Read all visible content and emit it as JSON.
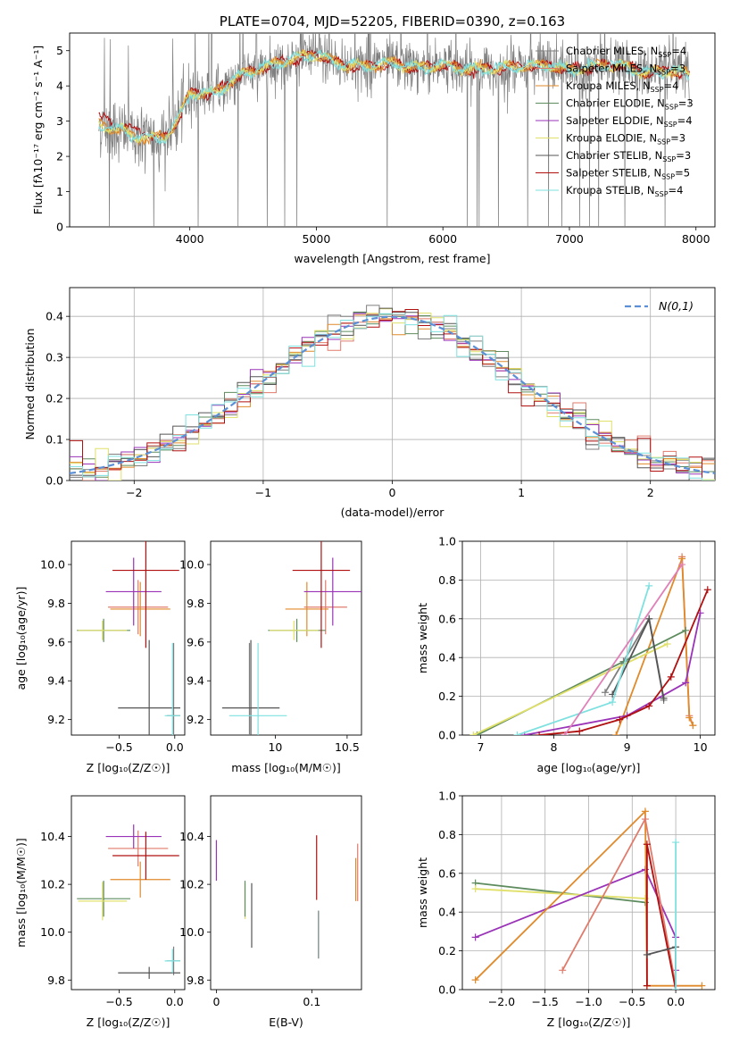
{
  "colors": {
    "chabrier_miles": "#7f7f7f",
    "salpeter_miles": "#e07b6b",
    "kroupa_miles": "#e08a2b",
    "chabrier_elodie": "#5e8c5e",
    "salpeter_elodie": "#9a33b8",
    "kroupa_elodie": "#e0e06b",
    "chabrier_stelib": "#555555",
    "salpeter_stelib": "#b01010",
    "kroupa_stelib": "#7fe0e0",
    "gaussian": "#5b8fd6",
    "grid": "#b0b0b0"
  },
  "chart_data": [
    {
      "id": "spectrum",
      "type": "line",
      "title": "PLATE=0704, MJD=52205, FIBERID=0390, z=0.163",
      "xlabel": "wavelength [Angstrom, rest frame]",
      "ylabel": "Flux [fλ10⁻¹⁷ erg cm⁻² s⁻¹ A⁻¹]",
      "xlim": [
        3050,
        8150
      ],
      "ylim": [
        0,
        5.5
      ],
      "xticks": [
        4000,
        5000,
        6000,
        7000,
        8000
      ],
      "yticks": [
        0,
        1,
        2,
        3,
        4,
        5
      ],
      "grid": false,
      "legend_position": "right",
      "series": [
        {
          "name": "Chabrier MILES, N",
          "sub": "SSP",
          "suffix": "=4"
        },
        {
          "name": "Salpeter MILES, N",
          "sub": "SSP",
          "suffix": "=3"
        },
        {
          "name": "Kroupa MILES, N",
          "sub": "SSP",
          "suffix": "=4"
        },
        {
          "name": "Chabrier ELODIE, N",
          "sub": "SSP",
          "suffix": "=3"
        },
        {
          "name": "Salpeter ELODIE, N",
          "sub": "SSP",
          "suffix": "=4"
        },
        {
          "name": "Kroupa ELODIE, N",
          "sub": "SSP",
          "suffix": "=3"
        },
        {
          "name": "Chabrier STELIB, N",
          "sub": "SSP",
          "suffix": "=3"
        },
        {
          "name": "Salpeter STELIB, N",
          "sub": "SSP",
          "suffix": "=5"
        },
        {
          "name": "Kroupa STELIB, N",
          "sub": "SSP",
          "suffix": "=4"
        }
      ],
      "model_continuum": {
        "x": [
          3280,
          3400,
          3550,
          3700,
          3800,
          3900,
          4000,
          4200,
          4400,
          4600,
          4800,
          5000,
          5200,
          5400,
          5600,
          5800,
          6000,
          6200,
          6400,
          6600,
          6800,
          7000,
          7200,
          7400,
          7600,
          7800,
          7950
        ],
        "y": [
          2.9,
          2.8,
          2.6,
          2.5,
          2.55,
          3.0,
          3.8,
          3.8,
          4.3,
          4.55,
          4.75,
          4.9,
          4.6,
          4.55,
          4.65,
          4.5,
          4.6,
          4.45,
          4.5,
          4.55,
          4.6,
          4.45,
          4.55,
          4.6,
          4.35,
          4.45,
          4.3
        ]
      },
      "data_x_range": [
        3280,
        7950
      ]
    },
    {
      "id": "residuals",
      "type": "histogram",
      "xlabel": "(data-model)/error",
      "ylabel": "Normed distribution",
      "xlim": [
        -2.5,
        2.5
      ],
      "ylim": [
        0,
        0.47
      ],
      "xticks": [
        -2,
        -1,
        0,
        1,
        2
      ],
      "xtick_labels": [
        "−2",
        "−1",
        "0",
        "1",
        "2"
      ],
      "yticks": [
        0.0,
        0.1,
        0.2,
        0.3,
        0.4
      ],
      "grid": true,
      "legend_label": "N(0,1)",
      "bin_width": 0.1
    },
    {
      "id": "age_vs_Z",
      "type": "errorbar",
      "xlabel": "Z [log₁₀(Z/Z☉)]",
      "ylabel": "age [log₁₀(age/yr)]",
      "xlim": [
        -0.93,
        0.09
      ],
      "ylim": [
        9.12,
        10.12
      ],
      "xticks": [
        -0.5,
        0.0
      ],
      "xtick_labels": [
        "−0.5",
        "0.0"
      ],
      "yticks": [
        9.2,
        9.4,
        9.6,
        9.8,
        10.0
      ],
      "points": [
        {
          "series": "chabrier_miles",
          "x": -0.01,
          "xerr": 0.06,
          "y": 9.22,
          "yerr": 0.75
        },
        {
          "series": "salpeter_miles",
          "x": -0.33,
          "xerr": 0.27,
          "y": 9.78,
          "yerr": 0.28
        },
        {
          "series": "kroupa_miles",
          "x": -0.31,
          "xerr": 0.27,
          "y": 9.77,
          "yerr": 0.28
        },
        {
          "series": "chabrier_elodie",
          "x": -0.64,
          "xerr": 0.24,
          "y": 9.66,
          "yerr": 0.12
        },
        {
          "series": "salpeter_elodie",
          "x": -0.37,
          "xerr": 0.25,
          "y": 9.86,
          "yerr": 0.35
        },
        {
          "series": "kroupa_elodie",
          "x": -0.65,
          "xerr": 0.22,
          "y": 9.66,
          "yerr": 0.1
        },
        {
          "series": "chabrier_stelib",
          "x": -0.23,
          "xerr": 0.28,
          "y": 9.26,
          "yerr": 0.7
        },
        {
          "series": "salpeter_stelib",
          "x": -0.26,
          "xerr": 0.3,
          "y": 9.97,
          "yerr": 0.8
        },
        {
          "series": "kroupa_stelib",
          "x": -0.02,
          "xerr": 0.07,
          "y": 9.22,
          "yerr": 0.75
        }
      ]
    },
    {
      "id": "age_vs_mass",
      "type": "errorbar",
      "xlabel": "mass [log₁₀(M/M☉)]",
      "ylabel": "",
      "xlim": [
        9.55,
        10.6
      ],
      "ylim": [
        9.12,
        10.12
      ],
      "xticks": [
        10.0,
        10.5
      ],
      "yticks": [
        9.2,
        9.4,
        9.6,
        9.8,
        10.0
      ],
      "points": [
        {
          "series": "chabrier_miles",
          "x": 9.82,
          "xerr": 0.0,
          "y": 9.22,
          "yerr": 0.75
        },
        {
          "series": "salpeter_miles",
          "x": 10.35,
          "xerr": 0.15,
          "y": 9.78,
          "yerr": 0.28
        },
        {
          "series": "kroupa_miles",
          "x": 10.22,
          "xerr": 0.15,
          "y": 9.77,
          "yerr": 0.28
        },
        {
          "series": "chabrier_elodie",
          "x": 10.15,
          "xerr": 0.2,
          "y": 9.66,
          "yerr": 0.12
        },
        {
          "series": "salpeter_elodie",
          "x": 10.4,
          "xerr": 0.2,
          "y": 9.86,
          "yerr": 0.35
        },
        {
          "series": "kroupa_elodie",
          "x": 10.13,
          "xerr": 0.17,
          "y": 9.66,
          "yerr": 0.1
        },
        {
          "series": "chabrier_stelib",
          "x": 9.83,
          "xerr": 0.2,
          "y": 9.26,
          "yerr": 0.7
        },
        {
          "series": "salpeter_stelib",
          "x": 10.32,
          "xerr": 0.2,
          "y": 9.97,
          "yerr": 0.8
        },
        {
          "series": "kroupa_stelib",
          "x": 9.88,
          "xerr": 0.2,
          "y": 9.22,
          "yerr": 0.75
        }
      ]
    },
    {
      "id": "weight_vs_age",
      "type": "line",
      "xlabel": "age [log₁₀(age/yr)]",
      "ylabel": "mass weight",
      "xlim": [
        6.75,
        10.2
      ],
      "ylim": [
        0,
        1.0
      ],
      "xticks": [
        7,
        8,
        9,
        10
      ],
      "yticks": [
        0.0,
        0.2,
        0.4,
        0.6,
        0.8,
        1.0
      ],
      "grid": true,
      "series": [
        {
          "key": "chabrier_miles",
          "x": [
            9.5,
            9.3,
            8.95,
            8.7
          ],
          "y": [
            0.18,
            0.6,
            0.38,
            0.22
          ]
        },
        {
          "key": "salpeter_miles",
          "x": [
            9.75,
            9.85,
            9.9
          ],
          "y": [
            0.92,
            0.1,
            0.05
          ]
        },
        {
          "key": "kroupa_miles",
          "x": [
            8.85,
            9.75,
            9.85,
            9.9
          ],
          "y": [
            0.0,
            0.91,
            0.09,
            0.05
          ]
        },
        {
          "key": "chabrier_elodie",
          "x": [
            6.95,
            9.8
          ],
          "y": [
            0.0,
            0.54
          ]
        },
        {
          "key": "salpeter_elodie",
          "x": [
            7.6,
            9.0,
            9.8,
            10.0
          ],
          "y": [
            0.0,
            0.1,
            0.27,
            0.63
          ]
        },
        {
          "key": "kroupa_elodie",
          "x": [
            6.9,
            9.55
          ],
          "y": [
            0.0,
            0.47
          ]
        },
        {
          "key": "chabrier_stelib",
          "x": [
            9.5,
            9.3,
            8.8
          ],
          "y": [
            0.19,
            0.6,
            0.21
          ]
        },
        {
          "key": "salpeter_stelib",
          "x": [
            7.8,
            8.35,
            8.9,
            9.3,
            9.6,
            10.1
          ],
          "y": [
            0.0,
            0.02,
            0.08,
            0.15,
            0.3,
            0.75
          ]
        },
        {
          "key": "kroupa_stelib",
          "x": [
            7.5,
            8.8,
            9.3
          ],
          "y": [
            0.0,
            0.17,
            0.77
          ]
        },
        {
          "key": "salpeter_miles_pink",
          "x": [
            8.15,
            9.75
          ],
          "y": [
            0.0,
            0.88
          ]
        }
      ]
    },
    {
      "id": "mass_vs_Z",
      "type": "errorbar",
      "xlabel": "Z [log₁₀(Z/Z☉)]",
      "ylabel": "mass [log₁₀(M/M☉)]",
      "xlim": [
        -0.93,
        0.09
      ],
      "ylim": [
        9.76,
        10.57
      ],
      "xticks": [
        -0.5,
        0.0
      ],
      "xtick_labels": [
        "−0.5",
        "0.0"
      ],
      "yticks": [
        9.8,
        10.0,
        10.2,
        10.4
      ],
      "points": [
        {
          "series": "chabrier_miles",
          "x": -0.01,
          "xerr": 0.06,
          "y": 9.88,
          "yerr": 0.12
        },
        {
          "series": "salpeter_miles",
          "x": -0.33,
          "xerr": 0.27,
          "y": 10.35,
          "yerr": 0.15
        },
        {
          "series": "kroupa_miles",
          "x": -0.31,
          "xerr": 0.27,
          "y": 10.22,
          "yerr": 0.15
        },
        {
          "series": "chabrier_elodie",
          "x": -0.64,
          "xerr": 0.24,
          "y": 10.14,
          "yerr": 0.15
        },
        {
          "series": "salpeter_elodie",
          "x": -0.37,
          "xerr": 0.25,
          "y": 10.4,
          "yerr": 0.1
        },
        {
          "series": "kroupa_elodie",
          "x": -0.65,
          "xerr": 0.22,
          "y": 10.13,
          "yerr": 0.16
        },
        {
          "series": "chabrier_stelib",
          "x": -0.23,
          "xerr": 0.28,
          "y": 9.83,
          "yerr": 0.05
        },
        {
          "series": "salpeter_stelib",
          "x": -0.26,
          "xerr": 0.3,
          "y": 10.32,
          "yerr": 0.2
        },
        {
          "series": "kroupa_stelib",
          "x": -0.02,
          "xerr": 0.07,
          "y": 9.88,
          "yerr": 0.1
        }
      ]
    },
    {
      "id": "mass_vs_ebv",
      "type": "errorbar",
      "xlabel": "E(B-V)",
      "ylabel": "",
      "xlim": [
        -0.006,
        0.152
      ],
      "ylim": [
        9.76,
        10.57
      ],
      "xticks": [
        0.0,
        0.1
      ],
      "yticks": [
        9.8,
        10.0,
        10.2,
        10.4
      ],
      "points": [
        {
          "series": "salpeter_elodie",
          "x": 0.0,
          "xerr": 0.0,
          "y": 10.3,
          "yerr": 0.17
        },
        {
          "series": "kroupa_elodie",
          "x": 0.03,
          "xerr": 0.0,
          "y": 10.13,
          "yerr": 0.15
        },
        {
          "series": "chabrier_elodie",
          "x": 0.03,
          "xerr": 0.0,
          "y": 10.14,
          "yerr": 0.15
        },
        {
          "series": "chabrier_stelib",
          "x": 0.037,
          "xerr": 0.0,
          "y": 10.07,
          "yerr": 0.27
        },
        {
          "series": "salpeter_stelib",
          "x": 0.105,
          "xerr": 0.0,
          "y": 10.27,
          "yerr": 0.27
        },
        {
          "series": "kroupa_stelib",
          "x": 0.107,
          "xerr": 0.0,
          "y": 9.99,
          "yerr": 0.2
        },
        {
          "series": "chabrier_miles",
          "x": 0.107,
          "xerr": 0.0,
          "y": 9.99,
          "yerr": 0.2
        },
        {
          "series": "kroupa_miles",
          "x": 0.146,
          "xerr": 0.0,
          "y": 10.22,
          "yerr": 0.18
        },
        {
          "series": "salpeter_miles",
          "x": 0.148,
          "xerr": 0.0,
          "y": 10.25,
          "yerr": 0.24
        }
      ]
    },
    {
      "id": "weight_vs_Z",
      "type": "line",
      "xlabel": "Z [log₁₀(Z/Z☉)]",
      "ylabel": "mass weight",
      "xlim": [
        -2.45,
        0.45
      ],
      "ylim": [
        0,
        1.0
      ],
      "xticks": [
        -2.0,
        -1.5,
        -1.0,
        -0.5,
        0.0
      ],
      "xtick_labels": [
        "−2.0",
        "−1.5",
        "−1.0",
        "−0.5",
        "0.0"
      ],
      "yticks": [
        0.0,
        0.2,
        0.4,
        0.6,
        0.8,
        1.0
      ],
      "grid": true,
      "series": [
        {
          "key": "chabrier_elodie",
          "x": [
            -2.3,
            -0.35
          ],
          "y": [
            0.55,
            0.45
          ]
        },
        {
          "key": "kroupa_elodie",
          "x": [
            -2.3,
            -0.35
          ],
          "y": [
            0.52,
            0.47
          ]
        },
        {
          "key": "salpeter_elodie",
          "x": [
            -2.3,
            -0.35,
            0.0,
            0.0
          ],
          "y": [
            0.27,
            0.62,
            0.27,
            0.1
          ]
        },
        {
          "key": "kroupa_miles",
          "x": [
            -2.3,
            -0.35,
            -0.33,
            0.3
          ],
          "y": [
            0.05,
            0.92,
            0.02,
            0.02
          ]
        },
        {
          "key": "salpeter_miles",
          "x": [
            -1.3,
            -0.35,
            0.0
          ],
          "y": [
            0.1,
            0.88,
            0.02
          ]
        },
        {
          "key": "salpeter_stelib",
          "x": [
            -0.33,
            -0.33,
            0.0
          ],
          "y": [
            0.02,
            0.75,
            0.0
          ]
        },
        {
          "key": "chabrier_stelib",
          "x": [
            -0.33,
            0.0,
            0.0
          ],
          "y": [
            0.18,
            0.22,
            0.0
          ]
        },
        {
          "key": "kroupa_stelib",
          "x": [
            0.0,
            0.0
          ],
          "y": [
            0.0,
            0.76
          ]
        }
      ]
    }
  ]
}
